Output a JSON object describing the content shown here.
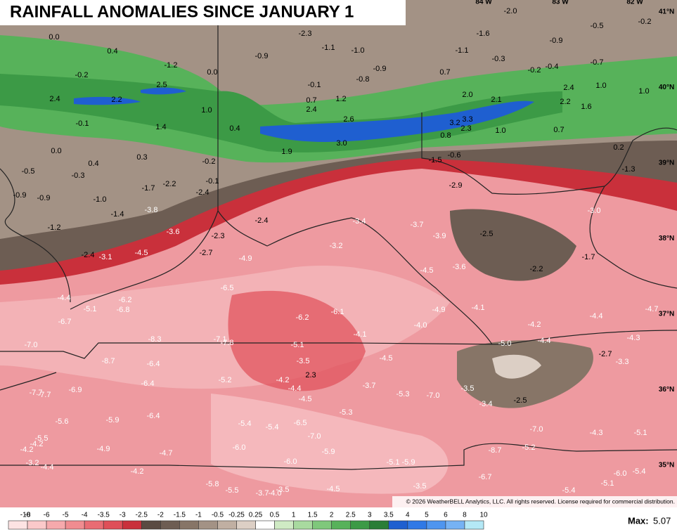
{
  "title": "RAINFALL ANOMALIES SINCE JANUARY 1",
  "lon_labels": [
    "84 W",
    "83 W",
    "82 W"
  ],
  "lat_labels": [
    "41°N",
    "40°N",
    "39°N",
    "38°N",
    "37°N",
    "36°N",
    "35°N"
  ],
  "values": [
    "0.0",
    "0.4",
    "-1.2",
    "-0.2",
    "0.0",
    "2.5",
    "2.4",
    "2.2",
    "1.0",
    "-0.1",
    "1.4",
    "0.4",
    "0.0",
    "0.3",
    "0.4",
    "-0.5",
    "-0.3",
    "-0.2",
    "-0.1",
    "-1.7",
    "-2.2",
    "-2.4",
    "-0.9",
    "-0.9",
    "-1.0",
    "-1.4",
    "-3.8",
    "-1.2",
    "-3.6",
    "-2.3",
    "-2.4",
    "-2.7",
    "-2.4",
    "-3.1",
    "-4.5",
    "-4.9",
    "-6.5",
    "-4.4",
    "-6.2",
    "-5.1",
    "-6.8",
    "-6.7",
    "-6.2",
    "-6.1",
    "-7.0",
    "-8.3",
    "-7.1",
    "-7.8",
    "-8.7",
    "-6.4",
    "-6.4",
    "-6.9",
    "-7.7",
    "-7.7",
    "-5.2",
    "-5.6",
    "-5.9",
    "-6.4",
    "-5.5",
    "-4.2",
    "-4.2",
    "-4.9",
    "-4.7",
    "-3.2",
    "-4.4",
    "-4.2",
    "-5.4",
    "-5.4",
    "-6.5",
    "-6.0",
    "-7.0",
    "-5.9",
    "-6.0",
    "-5.8",
    "-5.5",
    "-3.7",
    "-4.0",
    "-3.5",
    "-4.5",
    "-3.5",
    "-6.7",
    "-5.1",
    "-5.9",
    "-5.4",
    "-5.1",
    "-6.0",
    "-5.4",
    "-8.7",
    "-5.2",
    "-7.0",
    "-4.3",
    "-5.1",
    "-3.4",
    "-2.5",
    "-3.5",
    "-7.0",
    "-5.3",
    "-5.3",
    "-4.5",
    "-4.4",
    "-4.2",
    "-3.7",
    "2.3",
    "-3.5",
    "-5.1",
    "-4.5",
    "-4.1",
    "-4.0",
    "-4.9",
    "-4.1",
    "-4.2",
    "-4.4",
    "-5.0",
    "-4.4",
    "-4.3",
    "-4.7",
    "-2.7",
    "-3.3",
    "-3.6",
    "-4.5",
    "-2.5",
    "-2.2",
    "-1.7",
    "-3.0",
    "-3.9",
    "-3.7",
    "-3.4",
    "-3.2",
    "-2.9",
    "-1.5",
    "-0.6",
    "-1.3",
    "0.2",
    "0.7",
    "1.0",
    "0.8",
    "2.3",
    "3.2",
    "3.3",
    "2.1",
    "2.0",
    "2.2",
    "1.6",
    "2.4",
    "1.0",
    "1.0",
    "0.7",
    "-0.2",
    "-0.4",
    "-0.7",
    "-0.9",
    "-1.6",
    "-2.0",
    "-0.5",
    "-0.2",
    "-1.1",
    "-0.3",
    "-2.3",
    "-1.1",
    "-1.0",
    "-0.9",
    "-0.9",
    "-0.8",
    "-0.1",
    "1.2",
    "0.7",
    "2.4",
    "2.6",
    "3.0",
    "1.9"
  ],
  "legend": {
    "ticks": [
      -10,
      -8,
      -6,
      -5,
      -4,
      -3.5,
      -3,
      -2.5,
      -2,
      -1.5,
      -1,
      -0.5,
      -0.25,
      0.25,
      0.5,
      1,
      1.5,
      2,
      2.5,
      3,
      3.5,
      4,
      5,
      6,
      8,
      10
    ],
    "colors": [
      "#fde3e3",
      "#fbc9ca",
      "#f6a9ac",
      "#f08c90",
      "#e96c73",
      "#df4f58",
      "#c9303b",
      "#5a4a42",
      "#6d5d53",
      "#877567",
      "#a39285",
      "#c0afa2",
      "#dccfc5",
      "#ffffff",
      "#cfeac4",
      "#a8da9f",
      "#7fc87b",
      "#57b25a",
      "#3c9a46",
      "#2a7e37",
      "#1f5fd0",
      "#3079e6",
      "#4f95ef",
      "#76b2f4",
      "#b4e8f6"
    ]
  },
  "copyright": "© 2026 WeatherBELL Analytics, LLC. All rights reserved. License required for commercial distribution.",
  "max": {
    "label": "Max:",
    "value": 5.07
  }
}
